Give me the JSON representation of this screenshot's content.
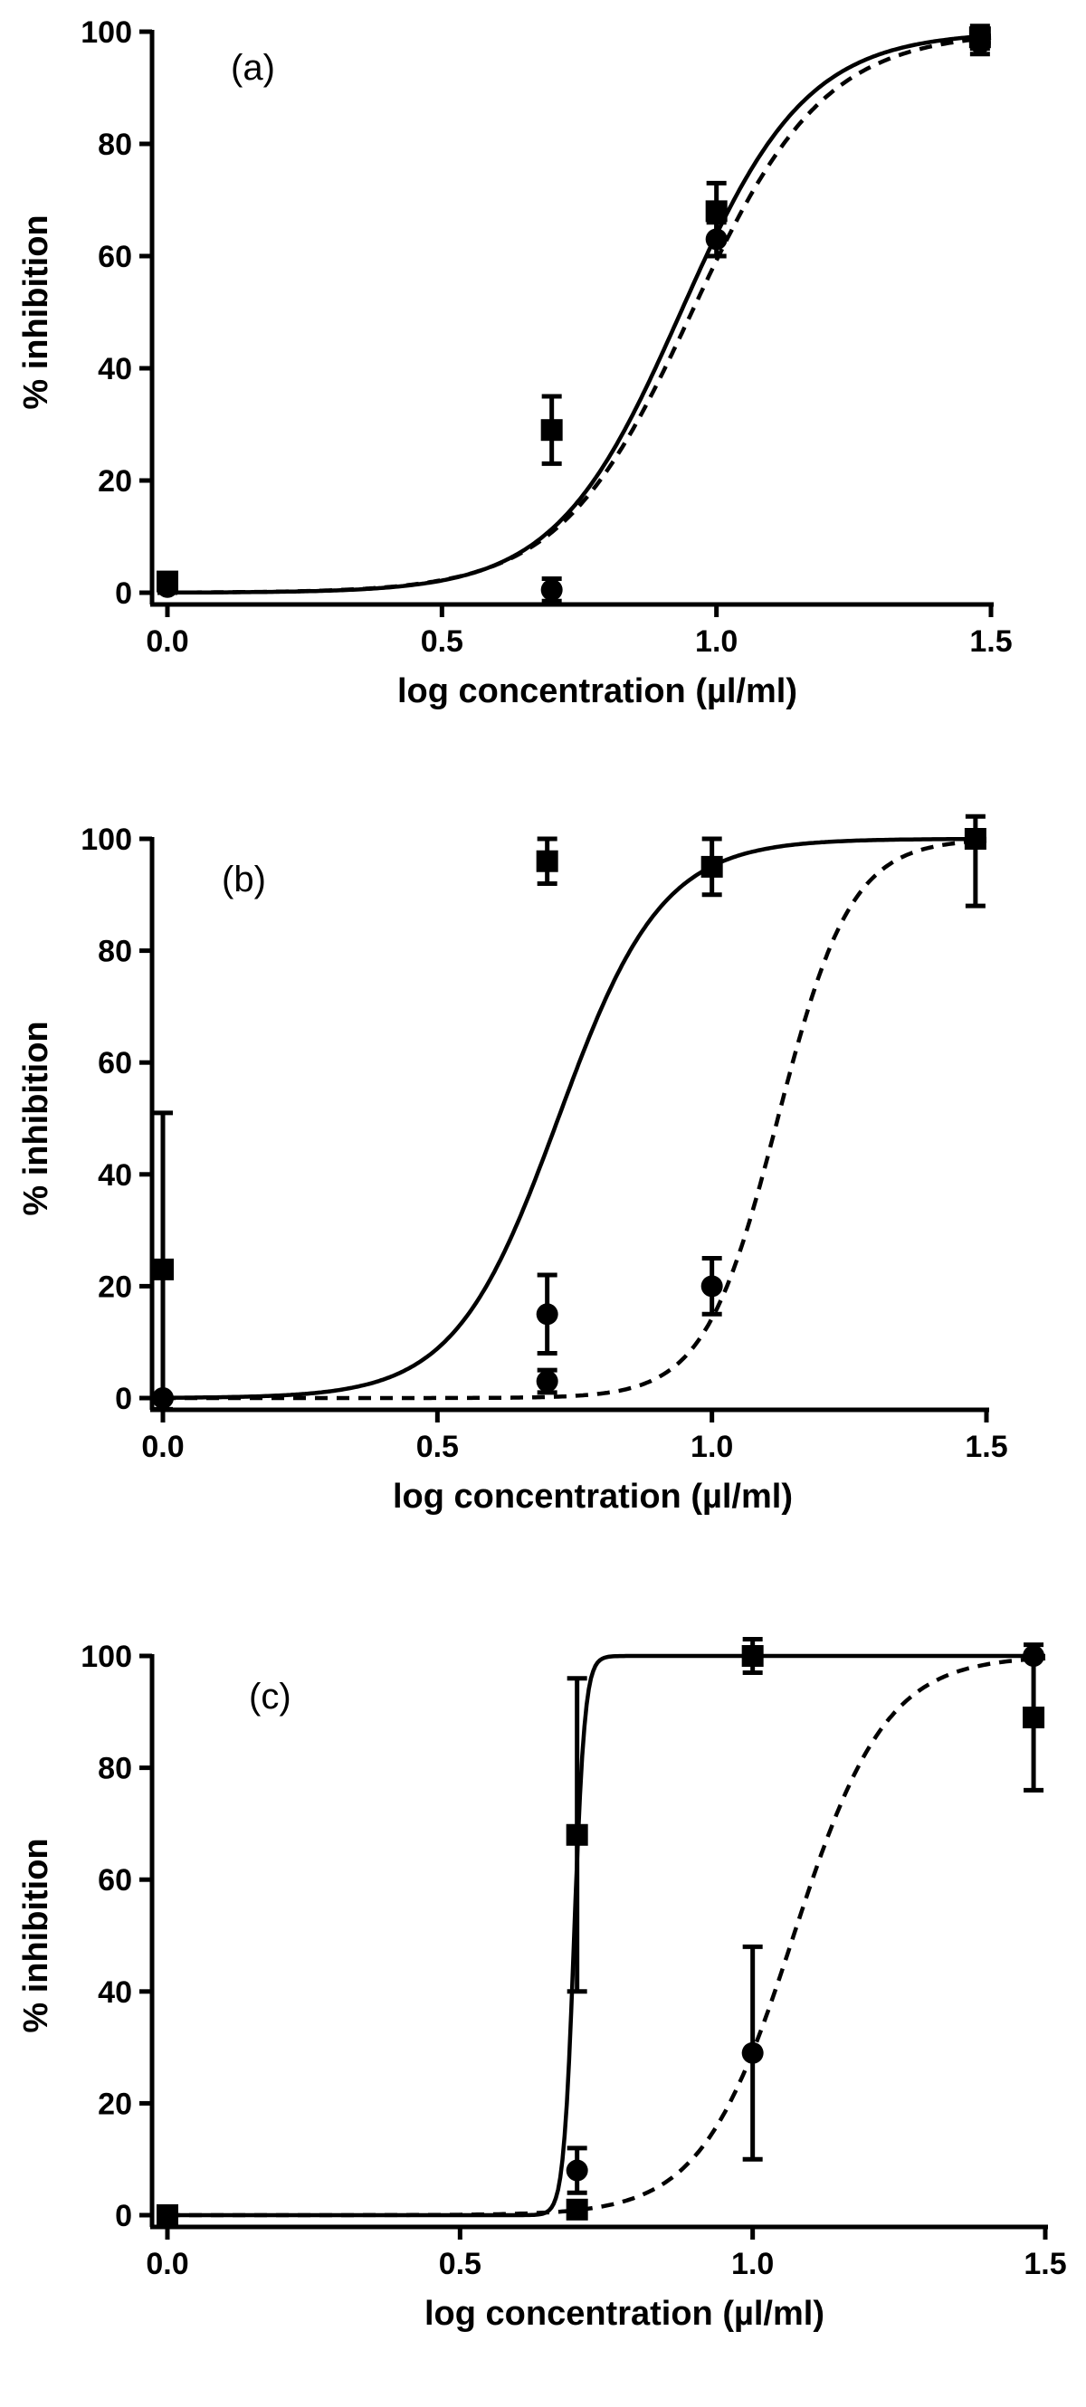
{
  "chart_data": [
    {
      "type": "scatter",
      "panel_label": "(a)",
      "xlabel": "log concentration (µl/ml)",
      "ylabel": "% inhibition",
      "xlim": [
        0,
        1.5
      ],
      "ylim": [
        0,
        100
      ],
      "x_ticks": [
        "0.0",
        "0.5",
        "1.0",
        "1.5"
      ],
      "y_ticks": [
        "0",
        "20",
        "40",
        "60",
        "80",
        "100"
      ],
      "grid": false,
      "legend": "none",
      "series": [
        {
          "marker": "square",
          "line_style": "solid",
          "points": [
            {
              "x": 0.0,
              "y": 2,
              "err": 1
            },
            {
              "x": 0.7,
              "y": 29,
              "err": 6
            },
            {
              "x": 1.0,
              "y": 68,
              "err": 5
            },
            {
              "x": 1.48,
              "y": 99,
              "err": 2
            }
          ],
          "fit": {
            "ec50_log": 0.935,
            "hill": 3.8
          }
        },
        {
          "marker": "circle",
          "line_style": "dashed",
          "points": [
            {
              "x": 0.0,
              "y": 1,
              "err": 1
            },
            {
              "x": 0.7,
              "y": 0.5,
              "err": 2
            },
            {
              "x": 1.0,
              "y": 63,
              "err": 3
            },
            {
              "x": 1.48,
              "y": 98,
              "err": 2
            }
          ],
          "fit": {
            "ec50_log": 0.955,
            "hill": 3.6
          }
        }
      ]
    },
    {
      "type": "scatter",
      "panel_label": "(b)",
      "xlabel": "log concentration (µl/ml)",
      "ylabel": "% inhibition",
      "xlim": [
        0,
        1.5
      ],
      "ylim": [
        0,
        100
      ],
      "x_ticks": [
        "0.0",
        "0.5",
        "1.0",
        "1.5"
      ],
      "y_ticks": [
        "0",
        "20",
        "40",
        "60",
        "80",
        "100"
      ],
      "grid": false,
      "legend": "none",
      "series": [
        {
          "marker": "square",
          "line_style": "solid",
          "points": [
            {
              "x": 0.0,
              "y": 23,
              "err": 28
            },
            {
              "x": 0.7,
              "y": 96,
              "err": 4
            },
            {
              "x": 1.0,
              "y": 95,
              "err": 5
            },
            {
              "x": 1.48,
              "y": 100,
              "err": 0
            }
          ],
          "fit": {
            "ec50_log": 0.72,
            "hill": 4.6
          }
        },
        {
          "marker": "circle",
          "line_style": "dashed",
          "points": [
            {
              "x": 0.0,
              "y": 0,
              "err": 0
            },
            {
              "x": 0.7,
              "y": 15,
              "err": 7
            },
            {
              "x": 0.7,
              "y": 3,
              "err": 2
            },
            {
              "x": 1.0,
              "y": 20,
              "err": 5
            },
            {
              "x": 1.48,
              "y": 100,
              "err": 12
            }
          ],
          "fit": {
            "ec50_log": 1.12,
            "hill": 6.5
          }
        }
      ]
    },
    {
      "type": "scatter",
      "panel_label": "(c)",
      "xlabel": "log concentration (µl/ml)",
      "ylabel": "% inhibition",
      "xlim": [
        0,
        1.5
      ],
      "ylim": [
        0,
        100
      ],
      "x_ticks": [
        "0.0",
        "0.5",
        "1.0",
        "1.5"
      ],
      "y_ticks": [
        "0",
        "20",
        "40",
        "60",
        "80",
        "100"
      ],
      "grid": false,
      "legend": "none",
      "series": [
        {
          "marker": "square",
          "line_style": "solid",
          "points": [
            {
              "x": 0.0,
              "y": 0,
              "err": 0
            },
            {
              "x": 0.7,
              "y": 68,
              "err": 28
            },
            {
              "x": 0.7,
              "y": 1,
              "err": 1
            },
            {
              "x": 1.0,
              "y": 100,
              "err": 3
            },
            {
              "x": 1.48,
              "y": 89,
              "err": 13
            }
          ],
          "fit": {
            "ec50_log": 0.695,
            "hill": 48
          }
        },
        {
          "marker": "circle",
          "line_style": "dashed",
          "points": [
            {
              "x": 0.0,
              "y": 0,
              "err": 0
            },
            {
              "x": 0.7,
              "y": 8,
              "err": 4
            },
            {
              "x": 1.0,
              "y": 29,
              "err": 19
            },
            {
              "x": 1.48,
              "y": 100,
              "err": 0
            }
          ],
          "fit": {
            "ec50_log": 1.07,
            "hill": 5.5
          }
        }
      ]
    }
  ]
}
